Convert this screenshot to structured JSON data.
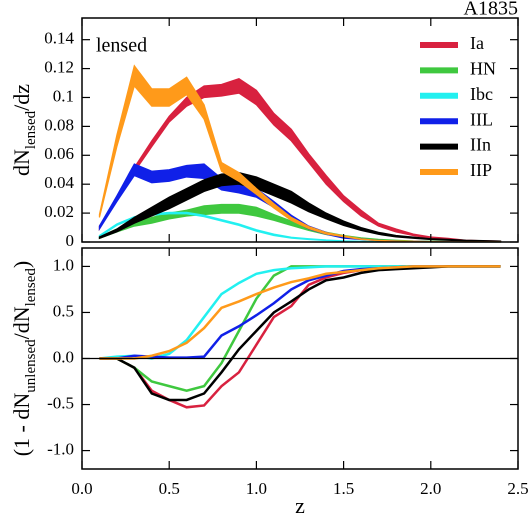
{
  "chart_data": [
    {
      "type": "band",
      "title": "A1835",
      "annotation": "lensed",
      "ylabel_parts": [
        "dN",
        "lensed",
        "/dz"
      ],
      "x": [
        0.1,
        0.2,
        0.3,
        0.4,
        0.5,
        0.6,
        0.7,
        0.8,
        0.9,
        1.0,
        1.1,
        1.2,
        1.3,
        1.4,
        1.5,
        1.6,
        1.7,
        1.8,
        1.9,
        2.0,
        2.1,
        2.2,
        2.3,
        2.4
      ],
      "xlim": [
        0,
        2.5
      ],
      "ylim": [
        0,
        0.155
      ],
      "yticks": [
        0,
        0.02,
        0.04,
        0.06,
        0.08,
        0.1,
        0.12,
        0.14
      ],
      "legend": "upper right",
      "series": [
        {
          "name": "Ia",
          "color": "#d8213f",
          "low": [
            0.009,
            0.029,
            0.0485,
            0.066,
            0.083,
            0.094,
            0.1,
            0.101,
            0.103,
            0.095,
            0.081,
            0.07,
            0.055,
            0.04,
            0.028,
            0.018,
            0.011,
            0.007,
            0.0045,
            0.0025,
            0.0015,
            0.0008,
            0.0005,
            0.0003
          ],
          "high": [
            0.011,
            0.031,
            0.0515,
            0.07,
            0.087,
            0.1,
            0.108,
            0.109,
            0.113,
            0.105,
            0.089,
            0.078,
            0.061,
            0.046,
            0.032,
            0.022,
            0.013,
            0.009,
            0.0055,
            0.0035,
            0.0025,
            0.0012,
            0.0009,
            0.0006
          ]
        },
        {
          "name": "HN",
          "color": "#3fc83f",
          "low": [
            0.0025,
            0.007,
            0.011,
            0.013,
            0.016,
            0.018,
            0.019,
            0.02,
            0.02,
            0.018,
            0.015,
            0.0115,
            0.008,
            0.0052,
            0.0035,
            0.0021,
            0.0012,
            0.0008,
            0.0005,
            0.0003,
            0.0002,
            0.0001,
            0.0001,
            0
          ],
          "high": [
            0.0035,
            0.009,
            0.013,
            0.017,
            0.02,
            0.022,
            0.025,
            0.026,
            0.026,
            0.024,
            0.019,
            0.0145,
            0.01,
            0.0068,
            0.0045,
            0.0029,
            0.0018,
            0.0012,
            0.0007,
            0.0005,
            0.0004,
            0.0003,
            0.0002,
            0.0002
          ]
        },
        {
          "name": "Ibc",
          "color": "#22f0f0",
          "low": [
            0.0035,
            0.0115,
            0.0165,
            0.0185,
            0.0195,
            0.0195,
            0.0175,
            0.0145,
            0.0115,
            0.0075,
            0.0045,
            0.0027,
            0.0017,
            0.001,
            0.0006,
            0.0003,
            0.0002,
            0.0001,
            0.0001,
            0,
            0,
            0,
            0,
            0
          ],
          "high": [
            0.0045,
            0.0125,
            0.0175,
            0.0195,
            0.0205,
            0.0205,
            0.0185,
            0.0155,
            0.0125,
            0.0085,
            0.0055,
            0.0033,
            0.0023,
            0.0014,
            0.0008,
            0.0005,
            0.0003,
            0.0002,
            0.0001,
            0.0001,
            0.0001,
            0.0001,
            0,
            0
          ]
        },
        {
          "name": "IIL",
          "color": "#1020e8",
          "low": [
            0.009,
            0.028,
            0.046,
            0.041,
            0.042,
            0.045,
            0.044,
            0.036,
            0.034,
            0.031,
            0.024,
            0.0155,
            0.009,
            0.0053,
            0.0027,
            0.0017,
            0.0009,
            0.0005,
            0.0003,
            0.0002,
            0.0001,
            0,
            0,
            0
          ],
          "high": [
            0.011,
            0.032,
            0.054,
            0.049,
            0.05,
            0.053,
            0.054,
            0.044,
            0.04,
            0.037,
            0.028,
            0.0185,
            0.011,
            0.0067,
            0.0033,
            0.0023,
            0.0011,
            0.0007,
            0.0005,
            0.0003,
            0.0002,
            0.0001,
            0.0001,
            0.0001
          ]
        },
        {
          "name": "IIn",
          "color": "#000000",
          "low": [
            0.0025,
            0.007,
            0.013,
            0.018,
            0.023,
            0.029,
            0.035,
            0.039,
            0.04,
            0.037,
            0.032,
            0.027,
            0.021,
            0.016,
            0.0115,
            0.008,
            0.0053,
            0.0035,
            0.0026,
            0.0017,
            0.0012,
            0.0008,
            0.0006,
            0.0004
          ],
          "high": [
            0.0035,
            0.009,
            0.017,
            0.024,
            0.031,
            0.037,
            0.043,
            0.047,
            0.048,
            0.045,
            0.04,
            0.035,
            0.027,
            0.02,
            0.0145,
            0.01,
            0.0067,
            0.0045,
            0.0034,
            0.0023,
            0.0018,
            0.0012,
            0.001,
            0.0006
          ]
        },
        {
          "name": "IIP",
          "color": "#ff9a1a",
          "low": [
            0.017,
            0.066,
            0.108,
            0.094,
            0.094,
            0.102,
            0.085,
            0.049,
            0.042,
            0.033,
            0.0235,
            0.015,
            0.0093,
            0.0055,
            0.0037,
            0.0018,
            0.0009,
            0.0005,
            0.0003,
            0.0002,
            0.0001,
            0,
            0,
            0
          ],
          "high": [
            0.019,
            0.074,
            0.122,
            0.106,
            0.106,
            0.114,
            0.095,
            0.055,
            0.048,
            0.037,
            0.0265,
            0.017,
            0.0107,
            0.0065,
            0.0043,
            0.0022,
            0.0011,
            0.0007,
            0.0005,
            0.0003,
            0.0002,
            0.0001,
            0.0001,
            0.0001
          ]
        }
      ]
    },
    {
      "type": "line",
      "xlabel": "z",
      "ylabel_parts": [
        "(1 - dN",
        "unlensed",
        "/dN",
        "lensed",
        ")"
      ],
      "x": [
        0.1,
        0.2,
        0.3,
        0.4,
        0.5,
        0.6,
        0.7,
        0.8,
        0.9,
        1.0,
        1.1,
        1.2,
        1.3,
        1.4,
        1.5,
        1.6,
        1.7,
        1.8,
        1.9,
        2.0,
        2.1,
        2.2,
        2.3,
        2.4
      ],
      "xlim": [
        0,
        2.5
      ],
      "xticks": [
        {
          "value": 0,
          "label": "0.0"
        },
        0.5,
        {
          "value": 1,
          "label": "1.0"
        },
        1.5,
        {
          "value": 2,
          "label": "2.0"
        },
        2.5
      ],
      "ylim": [
        -1.2,
        1.2
      ],
      "yticks": [
        {
          "value": -1,
          "label": "-1.0"
        },
        -0.5,
        {
          "value": 0,
          "label": "0.0"
        },
        0.5,
        {
          "value": 1,
          "label": "1.0"
        }
      ],
      "series": [
        {
          "color": "#d8213f",
          "values": [
            0,
            0,
            -0.1,
            -0.35,
            -0.45,
            -0.53,
            -0.51,
            -0.3,
            -0.15,
            0.15,
            0.45,
            0.57,
            0.8,
            0.88,
            0.93,
            0.96,
            0.97,
            0.98,
            0.99,
            1,
            1,
            1,
            1,
            1
          ]
        },
        {
          "color": "#3fc83f",
          "values": [
            0,
            0,
            -0.1,
            -0.25,
            -0.3,
            -0.35,
            -0.3,
            -0.05,
            0.3,
            0.65,
            0.9,
            1,
            1,
            1,
            1,
            1,
            1,
            1,
            1,
            1,
            1,
            1,
            1,
            1
          ]
        },
        {
          "color": "#22f0f0",
          "values": [
            0,
            0.02,
            0.03,
            0,
            0.05,
            0.2,
            0.45,
            0.7,
            0.82,
            0.92,
            0.96,
            0.98,
            0.99,
            1,
            1,
            1,
            1,
            1,
            1,
            1,
            1,
            1,
            1,
            1
          ]
        },
        {
          "color": "#1020e8",
          "values": [
            0,
            0,
            0.03,
            0.02,
            0.01,
            0.01,
            0.02,
            0.25,
            0.35,
            0.47,
            0.6,
            0.75,
            0.85,
            0.9,
            0.95,
            0.97,
            0.98,
            0.99,
            1,
            1,
            1,
            1,
            1,
            1
          ]
        },
        {
          "color": "#000000",
          "values": [
            0,
            0,
            -0.1,
            -0.38,
            -0.45,
            -0.45,
            -0.38,
            -0.15,
            0.1,
            0.3,
            0.5,
            0.62,
            0.75,
            0.85,
            0.88,
            0.93,
            0.96,
            0.97,
            0.98,
            0.99,
            1,
            1,
            1,
            1
          ]
        },
        {
          "color": "#ff9a1a",
          "values": [
            0,
            0,
            0,
            0.03,
            0.08,
            0.17,
            0.33,
            0.55,
            0.62,
            0.7,
            0.77,
            0.83,
            0.87,
            0.92,
            0.94,
            0.96,
            0.98,
            0.99,
            1,
            1,
            1,
            1,
            1,
            1
          ]
        }
      ]
    }
  ]
}
